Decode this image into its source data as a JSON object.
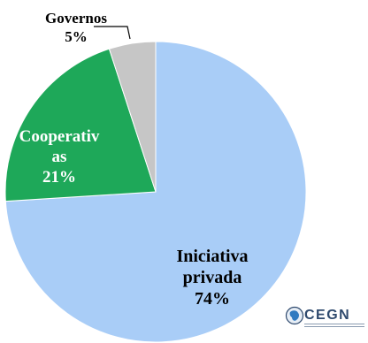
{
  "chart_data": {
    "type": "pie",
    "slices": [
      {
        "label_lines": [
          "Iniciativa",
          "privada"
        ],
        "pct_label": "74%",
        "value": 74,
        "color": "#a9cdf7",
        "text_color": "#000000"
      },
      {
        "label_lines": [
          "Cooperativ",
          "as"
        ],
        "pct_label": "21%",
        "value": 21,
        "color": "#1ea859",
        "text_color": "#ffffff"
      },
      {
        "label_lines": [
          "Governos"
        ],
        "pct_label": "5%",
        "value": 5,
        "color": "#c6c6c6",
        "text_color": "#000000"
      }
    ],
    "start_angle_deg": 0,
    "direction": "clockwise"
  },
  "logo": {
    "text": "CEGN",
    "icon": "brazil-globe-icon"
  }
}
